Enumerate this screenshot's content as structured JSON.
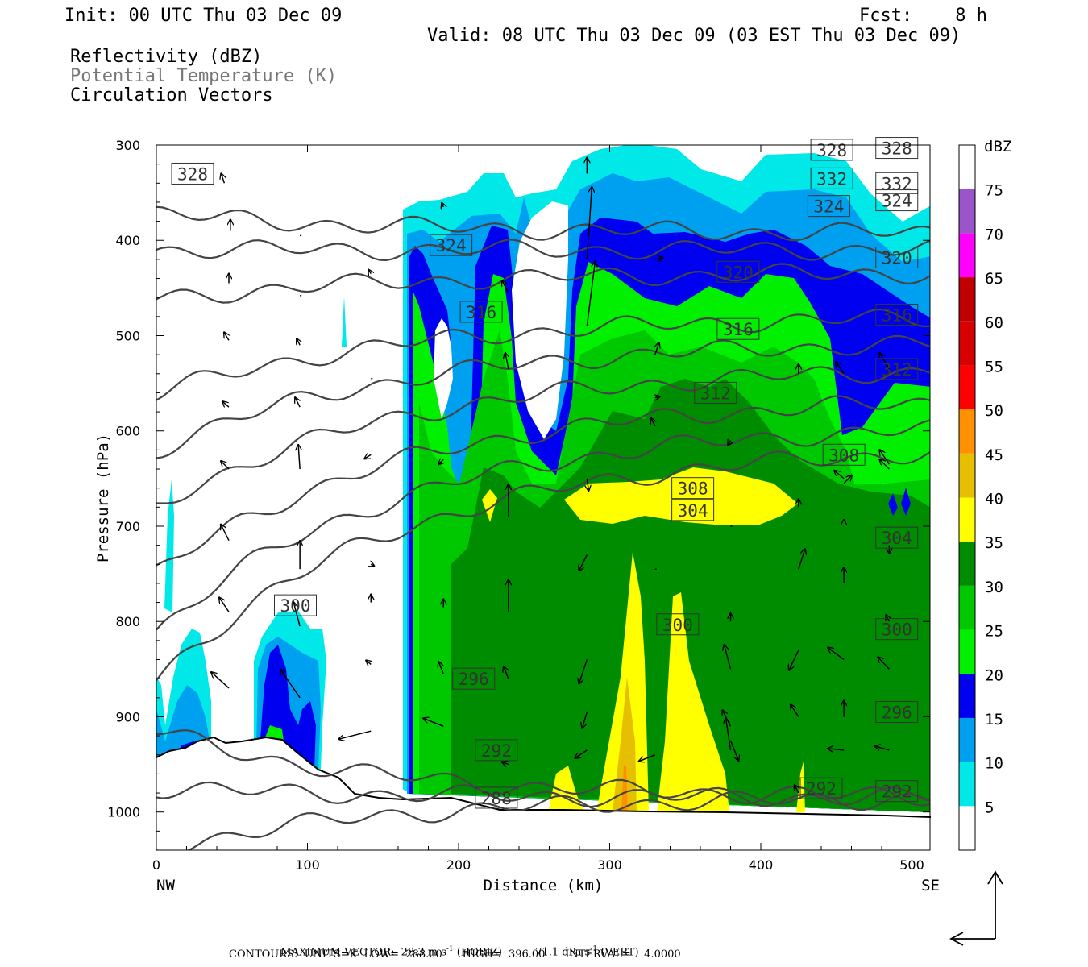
{
  "header": {
    "init": "Init: 00 UTC Thu 03 Dec 09",
    "fcst": "Fcst:    8 h",
    "valid": "Valid: 08 UTC Thu 03 Dec 09 (03 EST Thu 03 Dec 09)",
    "field1": "Reflectivity (dBZ)",
    "field2": "Potential Temperature (K)",
    "field3": "Circulation Vectors"
  },
  "footer": {
    "maxvec_label": "MAXIMUM VECTOR:",
    "maxvec_horiz": "28.3 m s",
    "horiz_tag": "(HORIZ)",
    "maxvec_vert": "71.1 dPa s",
    "vert_tag": "(VERT)",
    "exp": "-1",
    "contours": "CONTOURS:  UNITS=K  LOW=  288.00      HIGH=  396.00      INTERVAL=    4.0000"
  },
  "colors": {
    "5": "#00e8e8",
    "10": "#00a0f0",
    "15": "#0000f0",
    "20": "#00f000",
    "25": "#00c800",
    "30": "#008c00",
    "35": "#ffff00",
    "40": "#e6c000",
    "45": "#ff9000",
    "50": "#ff0000",
    "55": "#d60000",
    "60": "#c00000",
    "65": "#ff00ff",
    "70": "#9955c9",
    "contour": "#444444"
  },
  "chart_data": {
    "type": "heatmap",
    "xlabel": "Distance (km)",
    "ylabel": "Pressure (hPa)",
    "x_ticks": [
      0,
      100,
      200,
      300,
      400,
      500
    ],
    "y_ticks": [
      300,
      400,
      500,
      600,
      700,
      800,
      900,
      1000
    ],
    "xlim": [
      0,
      512
    ],
    "ylim": [
      300,
      1040
    ],
    "x_end_labels": {
      "left": "NW",
      "right": "SE"
    },
    "colorbar": {
      "unit": "dBZ",
      "levels": [
        5,
        10,
        15,
        20,
        25,
        30,
        35,
        40,
        45,
        50,
        55,
        60,
        65,
        70,
        75
      ]
    },
    "theta_contours": [
      {
        "value": 288,
        "p0": 1040,
        "label_x": 225,
        "label_p": 985
      },
      {
        "value": 292,
        "p0": 975,
        "label_x": 225,
        "label_p": 935,
        "label2_x": 440,
        "label2_p": 975,
        "label3_x": 490,
        "label3_p": 978
      },
      {
        "value": 296,
        "p0": 915,
        "label_x": 210,
        "label_p": 860,
        "label2_x": 490,
        "label2_p": 895
      },
      {
        "value": 300,
        "p0": 862,
        "label_x": 92,
        "label_p": 783,
        "label2_x": 345,
        "label2_p": 803,
        "label3_x": 490,
        "label3_p": 808
      },
      {
        "value": 304,
        "p0": 810,
        "label_x": 355,
        "label_p": 683,
        "label2_x": 490,
        "label2_p": 712
      },
      {
        "value": 308,
        "p0": 750,
        "label_x": 355,
        "label_p": 660,
        "label2_x": 455,
        "label2_p": 625
      },
      {
        "value": 312,
        "p0": 680,
        "label_x": 370,
        "label_p": 560,
        "label2_x": 490,
        "label2_p": 535
      },
      {
        "value": 316,
        "p0": 620,
        "label_x": 215,
        "label_p": 475,
        "label2_x": 385,
        "label2_p": 493,
        "label3_x": 490,
        "label3_p": 478
      },
      {
        "value": 320,
        "p0": 562,
        "label_x": 385,
        "label_p": 433,
        "label2_x": 490,
        "label2_p": 418
      },
      {
        "value": 324,
        "p0": 462,
        "label_x": 195,
        "label_p": 405,
        "label2_x": 445,
        "label2_p": 364,
        "label3_x": 490,
        "label3_p": 358
      },
      {
        "value": 328,
        "p0": 410,
        "label_x": 24,
        "label_p": 330,
        "label2_x": 447,
        "label2_p": 305,
        "label3_x": 490,
        "label3_p": 303
      },
      {
        "value": 332,
        "p0": 372,
        "label_x": 447,
        "label_p": 335,
        "label2_x": 490,
        "label2_p": 340
      }
    ]
  }
}
